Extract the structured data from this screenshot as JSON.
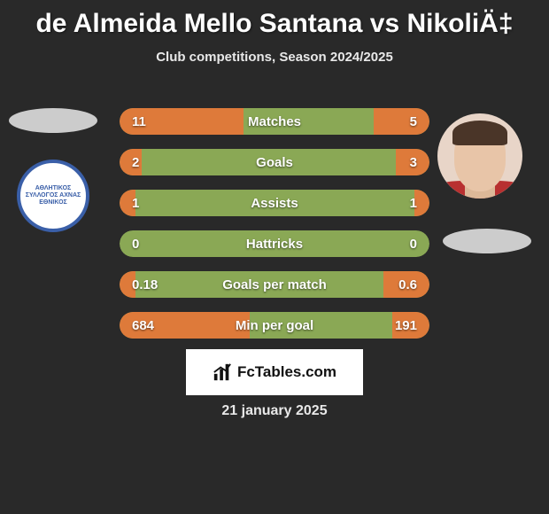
{
  "title": "de Almeida Mello Santana vs NikoliÄ‡",
  "subtitle": "Club competitions, Season 2024/2025",
  "attribution": "FcTables.com",
  "date": "21 january 2025",
  "colors": {
    "background": "#292929",
    "bar_base": "#8aa855",
    "bar_fill": "#de7a3a",
    "text": "#ffffff"
  },
  "bars": [
    {
      "label": "Matches",
      "left_val": "11",
      "right_val": "5",
      "left_pct": 40,
      "right_pct": 18
    },
    {
      "label": "Goals",
      "left_val": "2",
      "right_val": "3",
      "left_pct": 7,
      "right_pct": 11
    },
    {
      "label": "Assists",
      "left_val": "1",
      "right_val": "1",
      "left_pct": 5,
      "right_pct": 5
    },
    {
      "label": "Hattricks",
      "left_val": "0",
      "right_val": "0",
      "left_pct": 0,
      "right_pct": 0
    },
    {
      "label": "Goals per match",
      "left_val": "0.18",
      "right_val": "0.6",
      "left_pct": 5,
      "right_pct": 15
    },
    {
      "label": "Min per goal",
      "left_val": "684",
      "right_val": "191",
      "left_pct": 42,
      "right_pct": 12
    }
  ],
  "club_badge_text": "ΑΘΛΗΤΙΚΟΣ ΣΥΛΛΟΓΟΣ\nΑΧΝΑΣ\nΕΘΝΙΚΟΣ"
}
